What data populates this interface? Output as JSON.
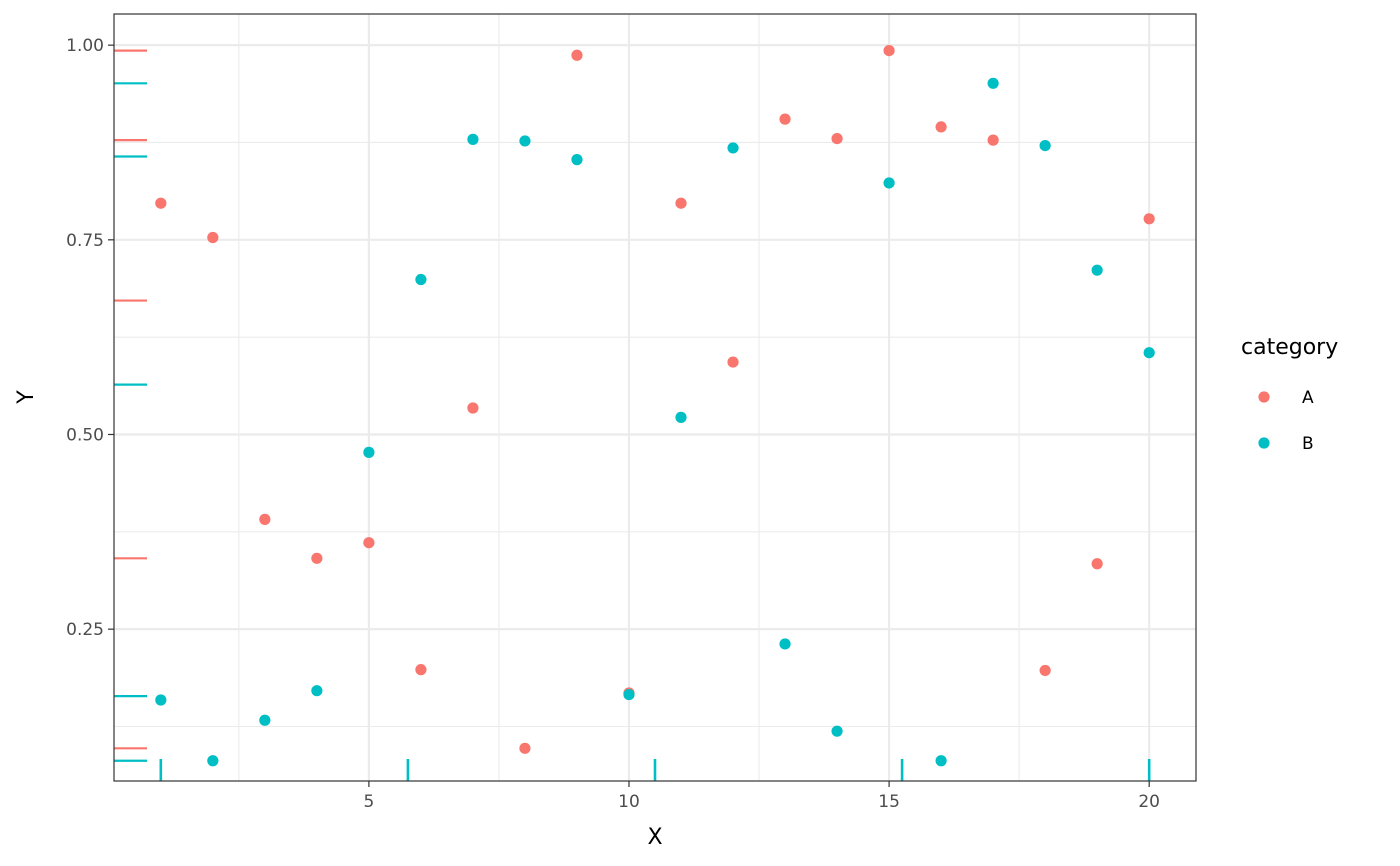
{
  "chart_data": {
    "type": "scatter",
    "xlabel": "X",
    "ylabel": "Y",
    "xlim": [
      0.1,
      20.9
    ],
    "ylim": [
      0.055,
      1.04
    ],
    "x_ticks": [
      5,
      10,
      15,
      20
    ],
    "x_tick_labels": [
      "5",
      "10",
      "15",
      "20"
    ],
    "y_ticks": [
      0.25,
      0.5,
      0.75,
      1.0
    ],
    "y_tick_labels": [
      "0.25",
      "0.50",
      "0.75",
      "1.00"
    ],
    "grid": true,
    "legend": {
      "title": "category",
      "position": "right"
    },
    "series": [
      {
        "name": "A",
        "color": "#F8766D",
        "points": [
          [
            1,
            0.797
          ],
          [
            2,
            0.753
          ],
          [
            3,
            0.391
          ],
          [
            4,
            0.341
          ],
          [
            5,
            0.361
          ],
          [
            6,
            0.198
          ],
          [
            7,
            0.534
          ],
          [
            8,
            0.097
          ],
          [
            9,
            0.987
          ],
          [
            10,
            0.168
          ],
          [
            11,
            0.797
          ],
          [
            12,
            0.593
          ],
          [
            13,
            0.905
          ],
          [
            14,
            0.88
          ],
          [
            15,
            0.993
          ],
          [
            16,
            0.895
          ],
          [
            17,
            0.878
          ],
          [
            18,
            0.197
          ],
          [
            19,
            0.334
          ],
          [
            20,
            0.777
          ]
        ]
      },
      {
        "name": "B",
        "color": "#00BFC4",
        "points": [
          [
            1,
            0.159
          ],
          [
            2,
            0.081
          ],
          [
            3,
            0.133
          ],
          [
            4,
            0.171
          ],
          [
            5,
            0.477
          ],
          [
            6,
            0.699
          ],
          [
            7,
            0.879
          ],
          [
            8,
            0.877
          ],
          [
            9,
            0.853
          ],
          [
            10,
            0.166
          ],
          [
            11,
            0.522
          ],
          [
            12,
            0.868
          ],
          [
            13,
            0.231
          ],
          [
            14,
            0.119
          ],
          [
            15,
            0.823
          ],
          [
            16,
            0.081
          ],
          [
            17,
            0.951
          ],
          [
            18,
            0.871
          ],
          [
            19,
            0.711
          ],
          [
            20,
            0.605
          ]
        ]
      }
    ],
    "rug_y": [
      {
        "series": "A",
        "values": [
          0.993,
          0.878,
          0.672,
          0.341,
          0.097
        ]
      },
      {
        "series": "B",
        "values": [
          0.951,
          0.857,
          0.564,
          0.164,
          0.081
        ]
      }
    ],
    "rug_x": [
      {
        "series": "B",
        "values": [
          1,
          5.75,
          10.5,
          15.25,
          20
        ]
      }
    ]
  }
}
